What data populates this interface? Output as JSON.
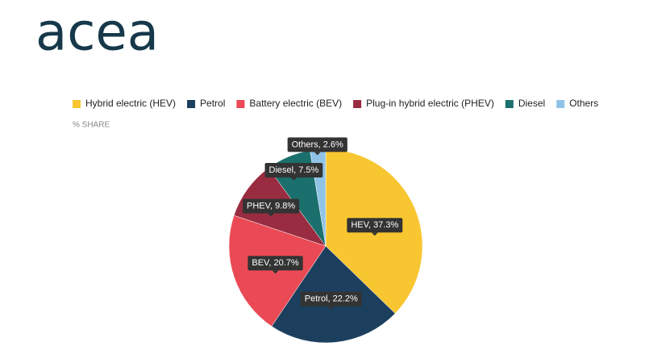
{
  "logo": "acea",
  "chart_data": {
    "type": "pie",
    "subtitle": "% SHARE",
    "categories": [
      "Hybrid electric (HEV)",
      "Petrol",
      "Battery electric (BEV)",
      "Plug-in hybrid electric (PHEV)",
      "Diesel",
      "Others"
    ],
    "values": [
      37.3,
      22.2,
      20.7,
      9.8,
      7.5,
      2.6
    ],
    "value_labels": [
      "HEV, 37.3%",
      "Petrol, 22.2%",
      "BEV, 20.7%",
      "PHEV, 9.8%",
      "Diesel, 7.5%",
      "Others, 2.6%"
    ],
    "colors": [
      "#f8c630",
      "#1d3f5e",
      "#ea4a55",
      "#992c40",
      "#1b6f6c",
      "#8fc3e6"
    ]
  }
}
